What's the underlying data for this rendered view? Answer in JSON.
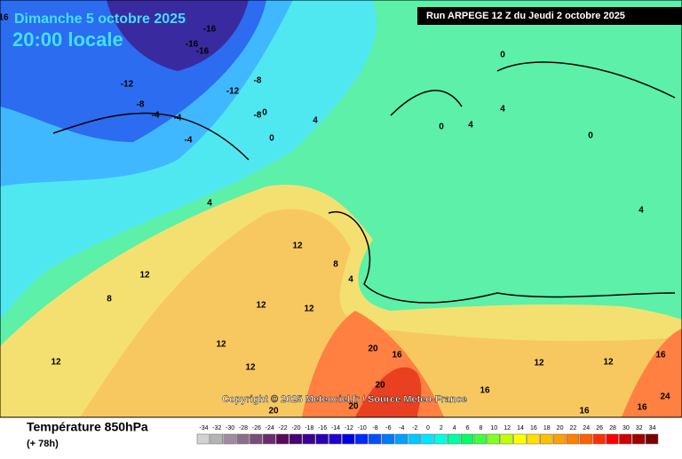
{
  "header": {
    "date": "Dimanche 5 octobre 2025",
    "time": "20:00 locale",
    "run": "Run ARPEGE 12 Z du Jeudi 2 octobre 2025"
  },
  "copyright": "Copyright © 2025 Meteociel.fr / Source Meteo-France",
  "footer": {
    "title": "Température 850hPa",
    "lead": "(+ 78h)"
  },
  "legend": {
    "labels": [
      -34,
      -32,
      -30,
      -28,
      -26,
      -24,
      -22,
      -20,
      -18,
      -16,
      -14,
      -12,
      -10,
      -8,
      -6,
      -4,
      -2,
      0,
      2,
      4,
      6,
      8,
      10,
      12,
      14,
      16,
      18,
      20,
      22,
      24,
      26,
      28,
      30,
      32,
      34
    ],
    "colors": [
      "#d2d2d2",
      "#b4b4b4",
      "#a08ca0",
      "#8c6e8c",
      "#7a4e7a",
      "#6e2a6e",
      "#5a0a5a",
      "#4b0070",
      "#3c0096",
      "#2800b4",
      "#1e00d2",
      "#0000e6",
      "#0028ff",
      "#0050ff",
      "#0078ff",
      "#00a0ff",
      "#00c8ff",
      "#00e6ff",
      "#00ffe0",
      "#00ffa0",
      "#00ff60",
      "#40ff40",
      "#80ff20",
      "#c0ff00",
      "#ffff00",
      "#ffe000",
      "#ffc000",
      "#ffa000",
      "#ff8000",
      "#ff6000",
      "#ff3000",
      "#ff0000",
      "#d20000",
      "#a00000",
      "#780000"
    ]
  },
  "map_labels": [
    "16",
    "-16",
    "-12",
    "-8",
    "-16",
    "-16",
    "-8",
    "-12",
    "-8",
    "-4",
    "-4",
    "-4",
    "0",
    "4",
    "0",
    "0",
    "4",
    "0",
    "4",
    "0",
    "4",
    "4",
    "12",
    "12",
    "8",
    "4",
    "12",
    "12",
    "12",
    "12",
    "20",
    "20",
    "16",
    "20",
    "16",
    "12",
    "12",
    "16",
    "16",
    "20",
    "24",
    "16",
    "8",
    "12"
  ]
}
